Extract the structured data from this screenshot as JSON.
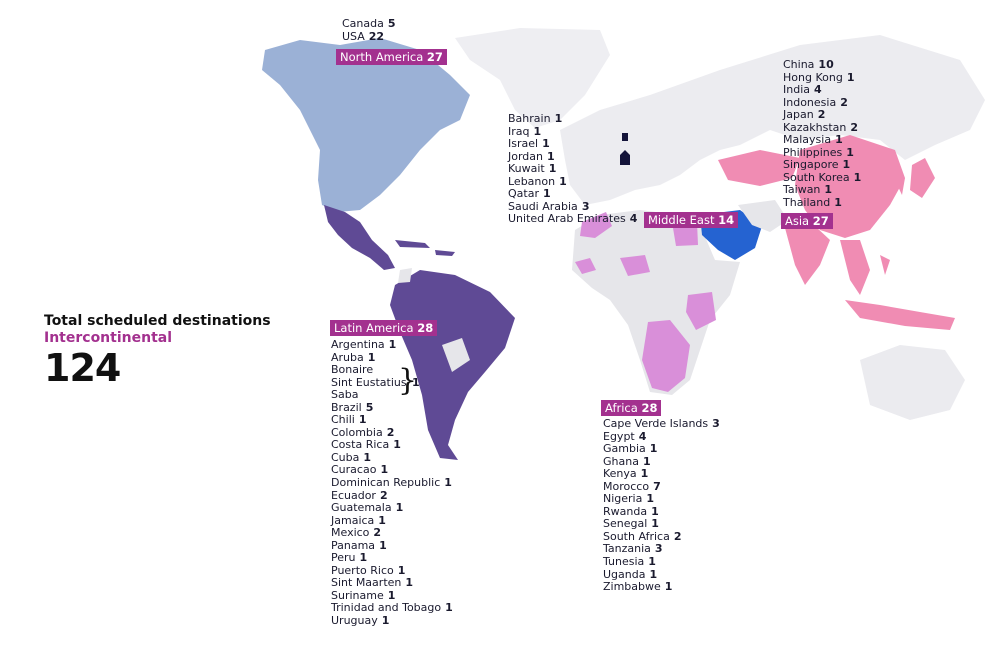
{
  "colors": {
    "north_america": "#9bb1d6",
    "latin_america": "#5f4a95",
    "africa": "#d98fd9",
    "middle_east": "#2563d1",
    "asia": "#f08cb3",
    "land_other": "#e6e6ea",
    "label_bg": "#a3318f"
  },
  "totals": {
    "line1": "Total scheduled destinations",
    "line2": "Intercontinental",
    "count": "124"
  },
  "regions": {
    "north_america": {
      "name": "North America",
      "total": "27",
      "countries": [
        {
          "name": "Canada",
          "count": "5"
        },
        {
          "name": "USA",
          "count": "22"
        }
      ]
    },
    "latin_america": {
      "name": "Latin America",
      "total": "28",
      "countries": [
        {
          "name": "Argentina",
          "count": "1"
        },
        {
          "name": "Aruba",
          "count": "1"
        },
        {
          "name": "Bonaire",
          "count": ""
        },
        {
          "name": "Sint Eustatius",
          "count": ""
        },
        {
          "name": "Saba",
          "count": ""
        },
        {
          "name": "Brazil",
          "count": "5"
        },
        {
          "name": "Chili",
          "count": "1"
        },
        {
          "name": "Colombia",
          "count": "2"
        },
        {
          "name": "Costa Rica",
          "count": "1"
        },
        {
          "name": "Cuba",
          "count": "1"
        },
        {
          "name": "Curacao",
          "count": "1"
        },
        {
          "name": "Dominican Republic",
          "count": "1"
        },
        {
          "name": "Ecuador",
          "count": "2"
        },
        {
          "name": "Guatemala",
          "count": "1"
        },
        {
          "name": "Jamaica",
          "count": "1"
        },
        {
          "name": "Mexico",
          "count": "2"
        },
        {
          "name": "Panama",
          "count": "1"
        },
        {
          "name": "Peru",
          "count": "1"
        },
        {
          "name": "Puerto Rico",
          "count": "1"
        },
        {
          "name": "Sint Maarten",
          "count": "1"
        },
        {
          "name": "Suriname",
          "count": "1"
        },
        {
          "name": "Trinidad and Tobago",
          "count": "1"
        },
        {
          "name": "Uruguay",
          "count": "1"
        }
      ],
      "bes_group_count": "1"
    },
    "middle_east": {
      "name": "Middle East",
      "total": "14",
      "countries": [
        {
          "name": "Bahrain",
          "count": "1"
        },
        {
          "name": "Iraq",
          "count": "1"
        },
        {
          "name": "Israel",
          "count": "1"
        },
        {
          "name": "Jordan",
          "count": "1"
        },
        {
          "name": "Kuwait",
          "count": "1"
        },
        {
          "name": "Lebanon",
          "count": "1"
        },
        {
          "name": "Qatar",
          "count": "1"
        },
        {
          "name": "Saudi Arabia",
          "count": "3"
        },
        {
          "name": "United Arab Emirates",
          "count": "4"
        }
      ]
    },
    "asia": {
      "name": "Asia",
      "total": "27",
      "countries": [
        {
          "name": "China",
          "count": "10"
        },
        {
          "name": "Hong Kong",
          "count": "1"
        },
        {
          "name": "India",
          "count": "4"
        },
        {
          "name": "Indonesia",
          "count": "2"
        },
        {
          "name": "Japan",
          "count": "2"
        },
        {
          "name": "Kazakhstan",
          "count": "2"
        },
        {
          "name": "Malaysia",
          "count": "1"
        },
        {
          "name": "Philippines",
          "count": "1"
        },
        {
          "name": "Singapore",
          "count": "1"
        },
        {
          "name": "South Korea",
          "count": "1"
        },
        {
          "name": "Taiwan",
          "count": "1"
        },
        {
          "name": "Thailand",
          "count": "1"
        }
      ]
    },
    "africa": {
      "name": "Africa",
      "total": "28",
      "countries": [
        {
          "name": "Cape Verde Islands",
          "count": "3"
        },
        {
          "name": "Egypt",
          "count": "4"
        },
        {
          "name": "Gambia",
          "count": "1"
        },
        {
          "name": "Ghana",
          "count": "1"
        },
        {
          "name": "Kenya",
          "count": "1"
        },
        {
          "name": "Morocco",
          "count": "7"
        },
        {
          "name": "Nigeria",
          "count": "1"
        },
        {
          "name": "Rwanda",
          "count": "1"
        },
        {
          "name": "Senegal",
          "count": "1"
        },
        {
          "name": "South Africa",
          "count": "2"
        },
        {
          "name": "Tanzania",
          "count": "3"
        },
        {
          "name": "Tunesia",
          "count": "1"
        },
        {
          "name": "Uganda",
          "count": "1"
        },
        {
          "name": "Zimbabwe",
          "count": "1"
        }
      ]
    }
  }
}
